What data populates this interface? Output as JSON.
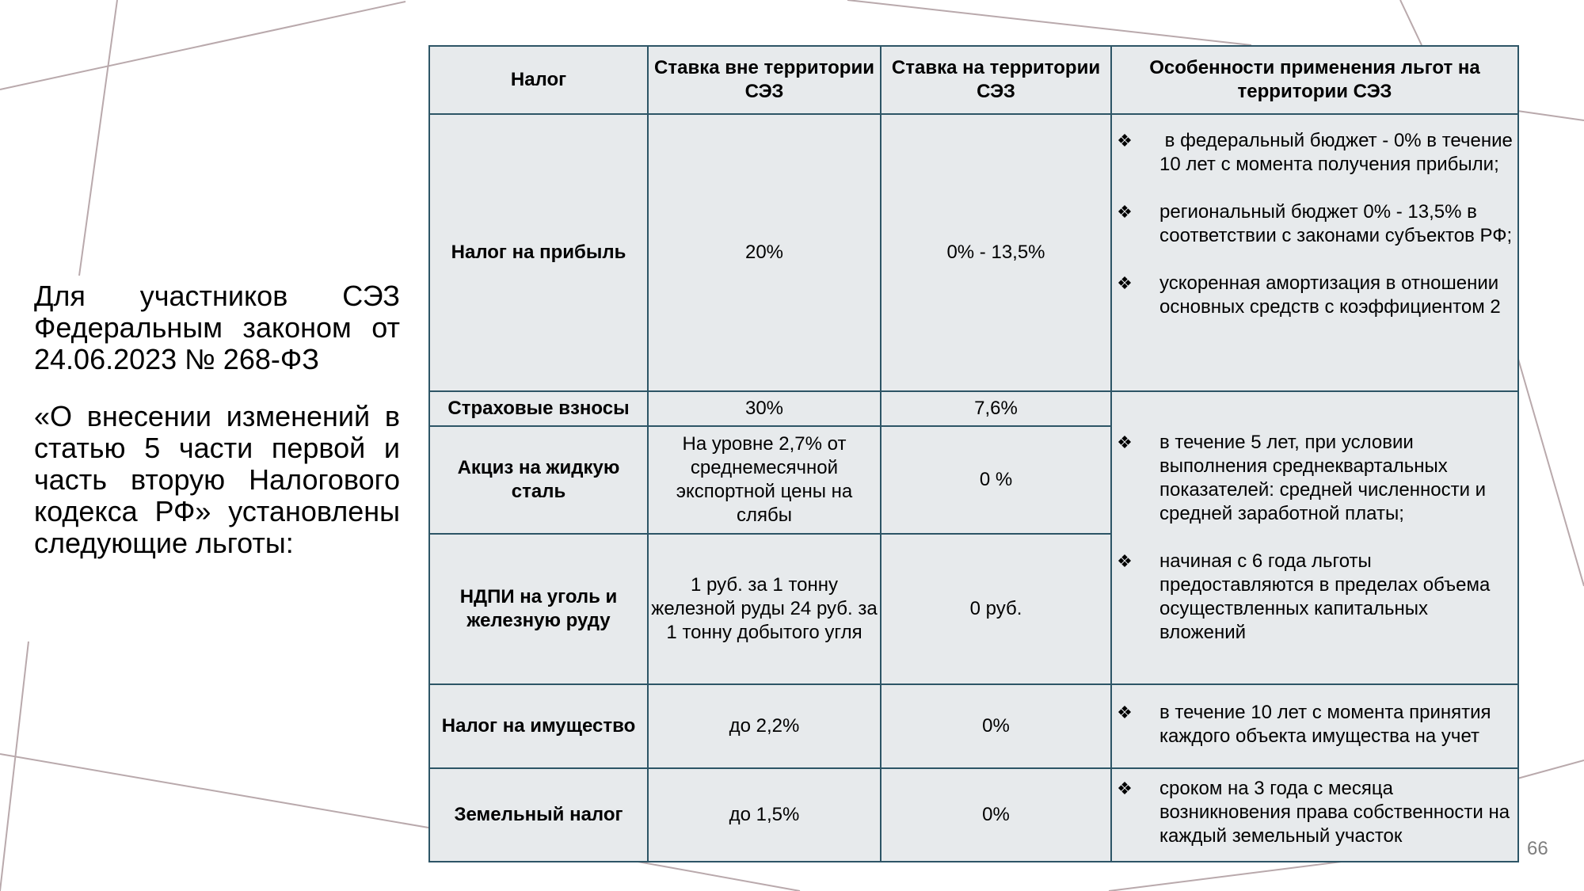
{
  "intro": {
    "paragraph_1": "Для участников СЭЗ Федеральным законом от 24.06.2023 № 268-ФЗ",
    "paragraph_2": "«О внесении изменений в статью 5 части первой и часть вторую Налогового кодекса РФ» установлены следующие льготы:"
  },
  "table": {
    "headers": [
      "Налог",
      "Ставка вне территории СЭЗ",
      "Ставка на территории СЭЗ",
      "Особенности применения льгот на территории СЭЗ"
    ],
    "rows": [
      {
        "tax": "Налог на прибыль",
        "rate_outside": "20%",
        "rate_inside": "0% - 13,5%"
      },
      {
        "tax": "Страховые взносы",
        "rate_outside": "30%",
        "rate_inside": "7,6%"
      },
      {
        "tax": "Акциз на жидкую сталь",
        "rate_outside": "На уровне 2,7% от среднемесячной экспортной цены на слябы",
        "rate_inside": "0 %"
      },
      {
        "tax": "НДПИ на уголь и железную руду",
        "rate_outside": "1 руб. за 1 тонну железной руды 24 руб. за 1 тонну добытого угля",
        "rate_inside": "0 руб."
      },
      {
        "tax": "Налог на имущество",
        "rate_outside": "до 2,2%",
        "rate_inside": "0%"
      },
      {
        "tax": "Земельный налог",
        "rate_outside": "до 1,5%",
        "rate_inside": "0%"
      }
    ],
    "notes": {
      "profit": [
        " в федеральный бюджет - 0% в течение 10 лет с момента получения прибыли;",
        "региональный бюджет 0% - 13,5% в соответствии с законами субъектов РФ;",
        "ускоренная амортизация в отношении основных средств с коэффициентом 2"
      ],
      "contributions_excise_mining": [
        "в течение 5 лет, при условии выполнения среднеквартальных показателей: средней численности и средней заработной платы;",
        "начиная с 6 года льготы предоставляются в пределах объема осуществленных капитальных вложений"
      ],
      "property": [
        "в течение 10 лет с момента принятия каждого объекта имущества на учет"
      ],
      "land": [
        "сроком на 3 года с месяца возникновения права собственности на каждый земельный участок"
      ]
    },
    "bullet_symbol": "❖"
  },
  "page_number": "66",
  "colors": {
    "table_border": "#2d5566",
    "table_fill": "#e7eaec",
    "background_lines": "#b9a9ac"
  }
}
